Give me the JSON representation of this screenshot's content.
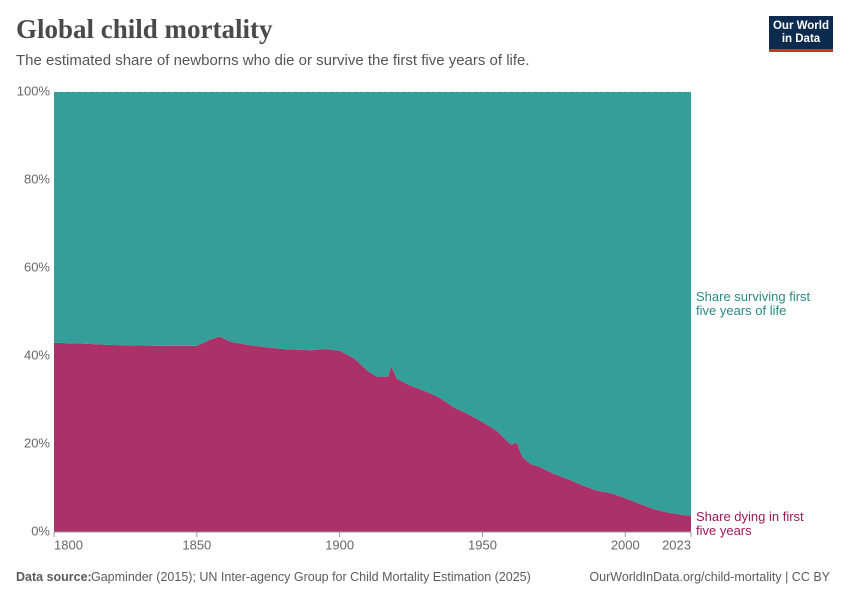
{
  "chart_data": {
    "type": "area",
    "title": "Global child mortality",
    "subtitle": "The estimated share of newborns who die or survive the first five years of life.",
    "logo": "Our World in Data",
    "source_label": "Data source:",
    "source": "Gapminder (2015); UN Inter-agency Group for Child Mortality Estimation (2025)",
    "url": "OurWorldInData.org/child-mortality | CC BY",
    "stacked": true,
    "x": [
      1800,
      1810,
      1820,
      1830,
      1840,
      1845,
      1850,
      1855,
      1858,
      1862,
      1870,
      1880,
      1890,
      1895,
      1900,
      1905,
      1910,
      1913,
      1917,
      1918,
      1920,
      1925,
      1930,
      1935,
      1940,
      1945,
      1950,
      1955,
      1960,
      1962,
      1964,
      1967,
      1970,
      1975,
      1980,
      1985,
      1990,
      1995,
      2000,
      2005,
      2010,
      2015,
      2020,
      2023
    ],
    "series": [
      {
        "name": "Share dying in first five years",
        "color": "#ab3168",
        "label_color": "#9b1b5a",
        "values": [
          43.0,
          42.8,
          42.5,
          42.4,
          42.3,
          42.3,
          42.3,
          43.8,
          44.4,
          43.2,
          42.3,
          41.6,
          41.3,
          41.6,
          41.2,
          39.5,
          36.5,
          35.3,
          35.3,
          37.8,
          34.8,
          33.2,
          32.0,
          30.5,
          28.3,
          26.8,
          25.0,
          23.0,
          19.8,
          20.3,
          17.0,
          15.4,
          14.8,
          13.2,
          12.0,
          10.6,
          9.4,
          8.8,
          7.7,
          6.4,
          5.2,
          4.4,
          3.9,
          3.7
        ]
      },
      {
        "name": "Share surviving first five years of life",
        "color": "#339f98",
        "label_color": "#2a8a83",
        "values": [
          57.0,
          57.2,
          57.5,
          57.6,
          57.7,
          57.7,
          57.7,
          56.2,
          55.6,
          56.8,
          57.7,
          58.4,
          58.7,
          58.4,
          58.8,
          60.5,
          63.5,
          64.7,
          64.7,
          62.2,
          65.2,
          66.8,
          68.0,
          69.5,
          71.7,
          73.2,
          75.0,
          77.0,
          80.2,
          79.7,
          83.0,
          84.6,
          85.2,
          86.8,
          88.0,
          89.4,
          90.6,
          91.2,
          92.3,
          93.6,
          94.8,
          95.6,
          96.1,
          96.3
        ]
      }
    ],
    "xlim": [
      1800,
      2023
    ],
    "xticks": [
      1800,
      1850,
      1900,
      1950,
      2000,
      2023
    ],
    "ylim": [
      0,
      100
    ],
    "yticks": [
      {
        "value": 0,
        "label": "0%"
      },
      {
        "value": 20,
        "label": "20%"
      },
      {
        "value": 40,
        "label": "40%"
      },
      {
        "value": 60,
        "label": "60%"
      },
      {
        "value": 80,
        "label": "80%"
      },
      {
        "value": 100,
        "label": "100%"
      }
    ]
  }
}
